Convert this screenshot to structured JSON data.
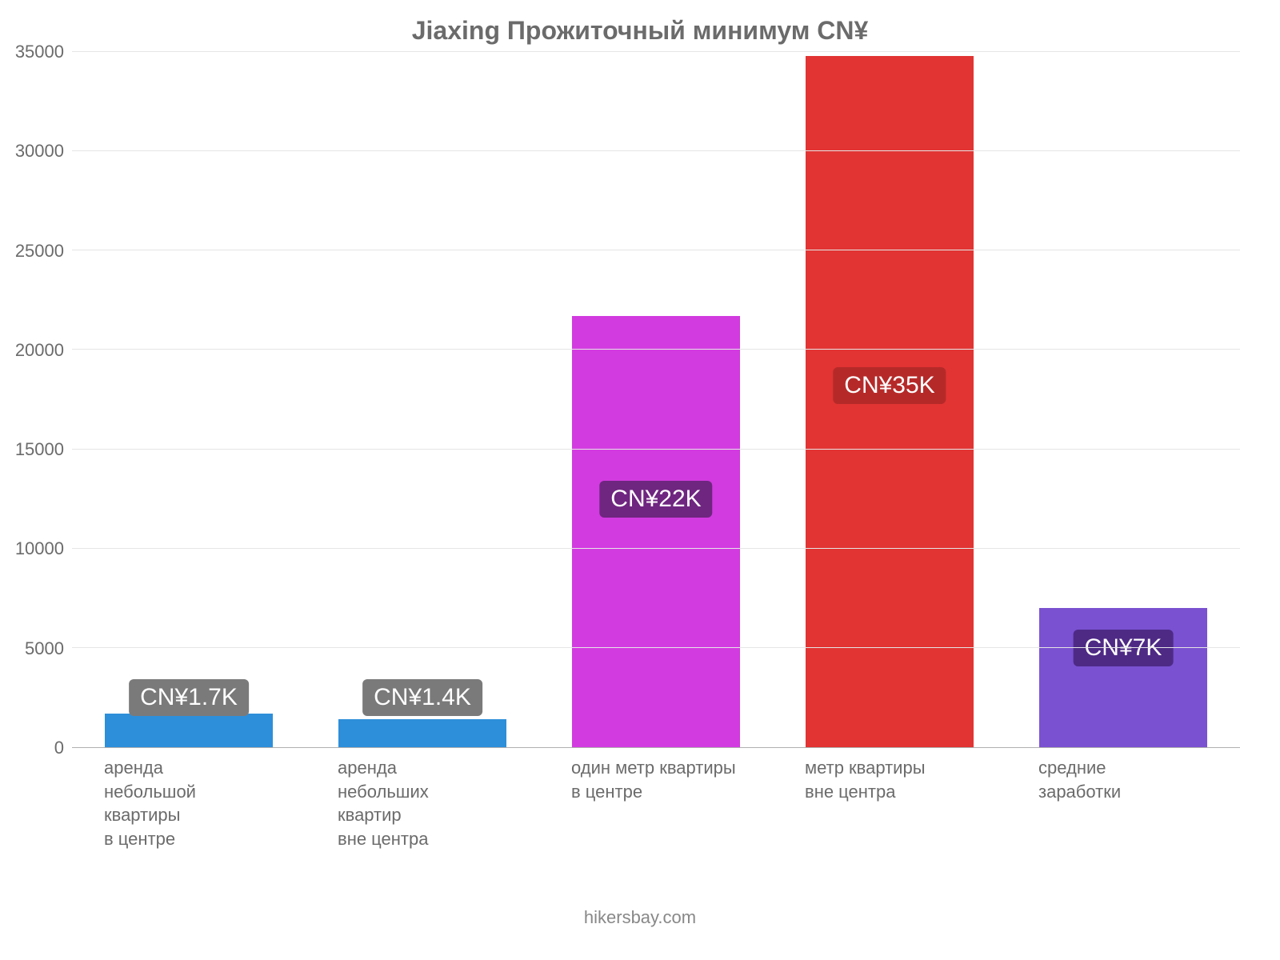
{
  "chart": {
    "type": "bar",
    "title": "Jiaxing Прожиточный минимум CN¥",
    "title_fontsize": 32,
    "title_color": "#6b6b6b",
    "background_color": "#ffffff",
    "grid_color": "#e5e5e5",
    "axis_line_color": "#b0b0b0",
    "ylim": [
      0,
      35000
    ],
    "ytick_step": 5000,
    "ytick_labels": [
      "0",
      "5000",
      "10000",
      "15000",
      "20000",
      "25000",
      "30000",
      "35000"
    ],
    "ytick_fontsize": 22,
    "xlabel_fontsize": 22,
    "xlabel_color": "#6b6b6b",
    "bar_width_ratio": 0.72,
    "label_fontsize": 30,
    "label_text_color": "#ffffff",
    "label_border_radius": 6,
    "bars": [
      {
        "category_lines": [
          "аренда",
          "небольшой",
          "квартиры",
          "в центре"
        ],
        "value": 1700,
        "bar_color": "#2d8fda",
        "label_text": "CN¥1.7K",
        "label_bg": "#7a7a7a",
        "label_y_value": 2500
      },
      {
        "category_lines": [
          "аренда",
          "небольших",
          "квартир",
          "вне центра"
        ],
        "value": 1400,
        "bar_color": "#2d8fda",
        "label_text": "CN¥1.4K",
        "label_bg": "#7a7a7a",
        "label_y_value": 2500
      },
      {
        "category_lines": [
          "один метр квартиры",
          "в центре"
        ],
        "value": 21700,
        "bar_color": "#d23be0",
        "label_text": "CN¥22K",
        "label_bg": "#6f2680",
        "label_y_value": 12500
      },
      {
        "category_lines": [
          "метр квартиры",
          "вне центра"
        ],
        "value": 34800,
        "bar_color": "#e13433",
        "label_text": "CN¥35K",
        "label_bg": "#b52a29",
        "label_y_value": 18200
      },
      {
        "category_lines": [
          "средние",
          "заработки"
        ],
        "value": 7000,
        "bar_color": "#7a51d1",
        "label_text": "CN¥7K",
        "label_bg": "#4e2a85",
        "label_y_value": 5000
      }
    ],
    "footer": "hikersbay.com",
    "footer_fontsize": 22,
    "footer_color": "#888888"
  }
}
